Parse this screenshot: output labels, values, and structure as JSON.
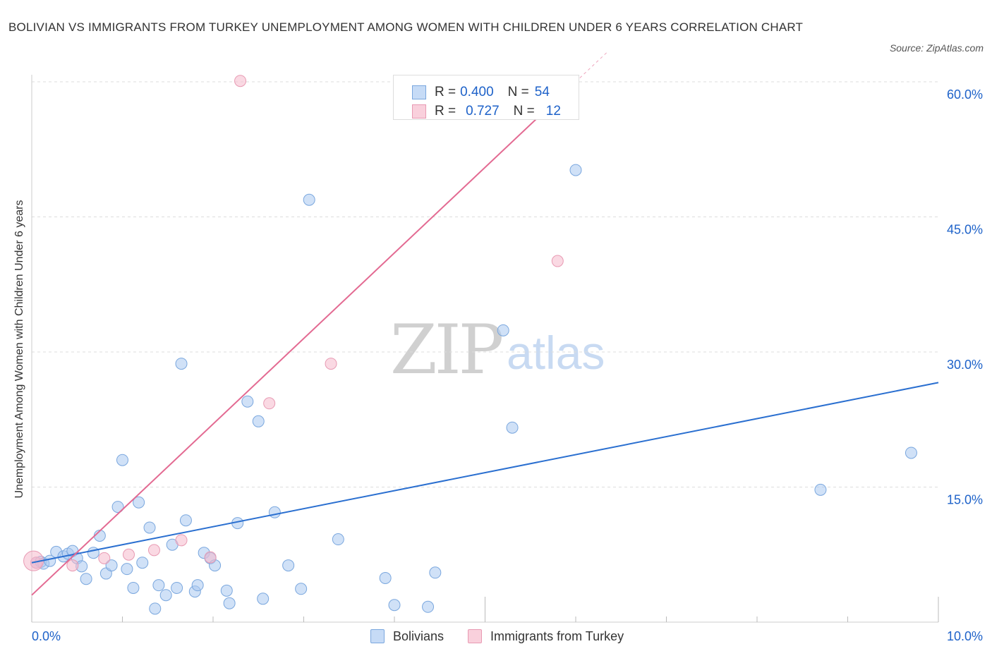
{
  "title": "BOLIVIAN VS IMMIGRANTS FROM TURKEY UNEMPLOYMENT AMONG WOMEN WITH CHILDREN UNDER 6 YEARS CORRELATION CHART",
  "source": "Source: ZipAtlas.com",
  "watermark": {
    "zip": "ZIP",
    "atlas": "atlas"
  },
  "legend_stats": [
    {
      "series": "Bolivians",
      "r_label": "R =",
      "r": "0.400",
      "n_label": "N =",
      "n": "54"
    },
    {
      "series": "Immigrants from Turkey",
      "r_label": "R =",
      "r": "0.727",
      "n_label": "N =",
      "n": "12"
    }
  ],
  "colors": {
    "blue_fill": "#aac8f0",
    "blue_stroke": "#7aa7de",
    "blue_line": "#2a6fd0",
    "pink_fill": "#f5b9cc",
    "pink_stroke": "#e89ab3",
    "pink_line": "#e36a92",
    "accent_text": "#1e62c9",
    "grid": "#dddddd"
  },
  "chart_data": {
    "type": "scatter",
    "title": "BOLIVIAN VS IMMIGRANTS FROM TURKEY UNEMPLOYMENT AMONG WOMEN WITH CHILDREN UNDER 6 YEARS CORRELATION CHART",
    "xlabel": "",
    "ylabel": "Unemployment Among Women with Children Under 6 years",
    "xlim": [
      0,
      10
    ],
    "ylim": [
      0,
      60
    ],
    "x_tick_labels": [
      "0.0%",
      "10.0%"
    ],
    "y_ticks": [
      15,
      30,
      45,
      60
    ],
    "y_tick_labels": [
      "15.0%",
      "30.0%",
      "45.0%",
      "60.0%"
    ],
    "grid": "horizontal dashed",
    "legend_placement": "bottom-center",
    "series": [
      {
        "name": "Bolivians",
        "color": "#aac8f0",
        "trend": {
          "x": [
            0,
            10
          ],
          "y": [
            6.6,
            26.6
          ]
        },
        "points": [
          [
            0.05,
            6.6
          ],
          [
            0.1,
            6.7
          ],
          [
            0.13,
            6.5
          ],
          [
            0.2,
            6.8
          ],
          [
            0.27,
            7.8
          ],
          [
            0.35,
            7.3
          ],
          [
            0.4,
            7.6
          ],
          [
            0.45,
            7.9
          ],
          [
            0.5,
            7.1
          ],
          [
            0.55,
            6.2
          ],
          [
            0.6,
            4.8
          ],
          [
            0.68,
            7.7
          ],
          [
            0.75,
            9.6
          ],
          [
            0.82,
            5.4
          ],
          [
            0.88,
            6.3
          ],
          [
            0.95,
            12.8
          ],
          [
            1.0,
            18.0
          ],
          [
            1.05,
            5.9
          ],
          [
            1.12,
            3.8
          ],
          [
            1.18,
            13.3
          ],
          [
            1.22,
            6.6
          ],
          [
            1.3,
            10.5
          ],
          [
            1.36,
            1.5
          ],
          [
            1.4,
            4.1
          ],
          [
            1.48,
            3.0
          ],
          [
            1.55,
            8.6
          ],
          [
            1.6,
            3.8
          ],
          [
            1.65,
            28.7
          ],
          [
            1.7,
            11.3
          ],
          [
            1.8,
            3.4
          ],
          [
            1.83,
            4.1
          ],
          [
            1.9,
            7.7
          ],
          [
            1.97,
            7.1
          ],
          [
            2.02,
            6.3
          ],
          [
            2.15,
            3.5
          ],
          [
            2.18,
            2.1
          ],
          [
            2.27,
            11.0
          ],
          [
            2.38,
            24.5
          ],
          [
            2.5,
            22.3
          ],
          [
            2.55,
            2.6
          ],
          [
            2.68,
            12.2
          ],
          [
            2.83,
            6.3
          ],
          [
            2.97,
            3.7
          ],
          [
            3.06,
            46.9
          ],
          [
            3.38,
            9.2
          ],
          [
            3.9,
            4.9
          ],
          [
            4.0,
            1.9
          ],
          [
            4.37,
            1.7
          ],
          [
            4.45,
            5.5
          ],
          [
            5.2,
            32.4
          ],
          [
            5.3,
            21.6
          ],
          [
            6.0,
            50.2
          ],
          [
            8.7,
            14.7
          ],
          [
            9.7,
            18.8
          ]
        ]
      },
      {
        "name": "Immigrants from Turkey",
        "color": "#f5b9cc",
        "trend": {
          "x": [
            0,
            6.0
          ],
          "y": [
            3.0,
            60.0
          ]
        },
        "points": [
          [
            0.05,
            6.6
          ],
          [
            0.45,
            6.3
          ],
          [
            0.8,
            7.1
          ],
          [
            1.07,
            7.5
          ],
          [
            1.35,
            8.0
          ],
          [
            1.65,
            9.1
          ],
          [
            1.97,
            7.2
          ],
          [
            2.3,
            60.1
          ],
          [
            2.62,
            24.3
          ],
          [
            3.3,
            28.7
          ],
          [
            5.8,
            40.1
          ],
          [
            0.02,
            6.8
          ]
        ]
      }
    ]
  }
}
